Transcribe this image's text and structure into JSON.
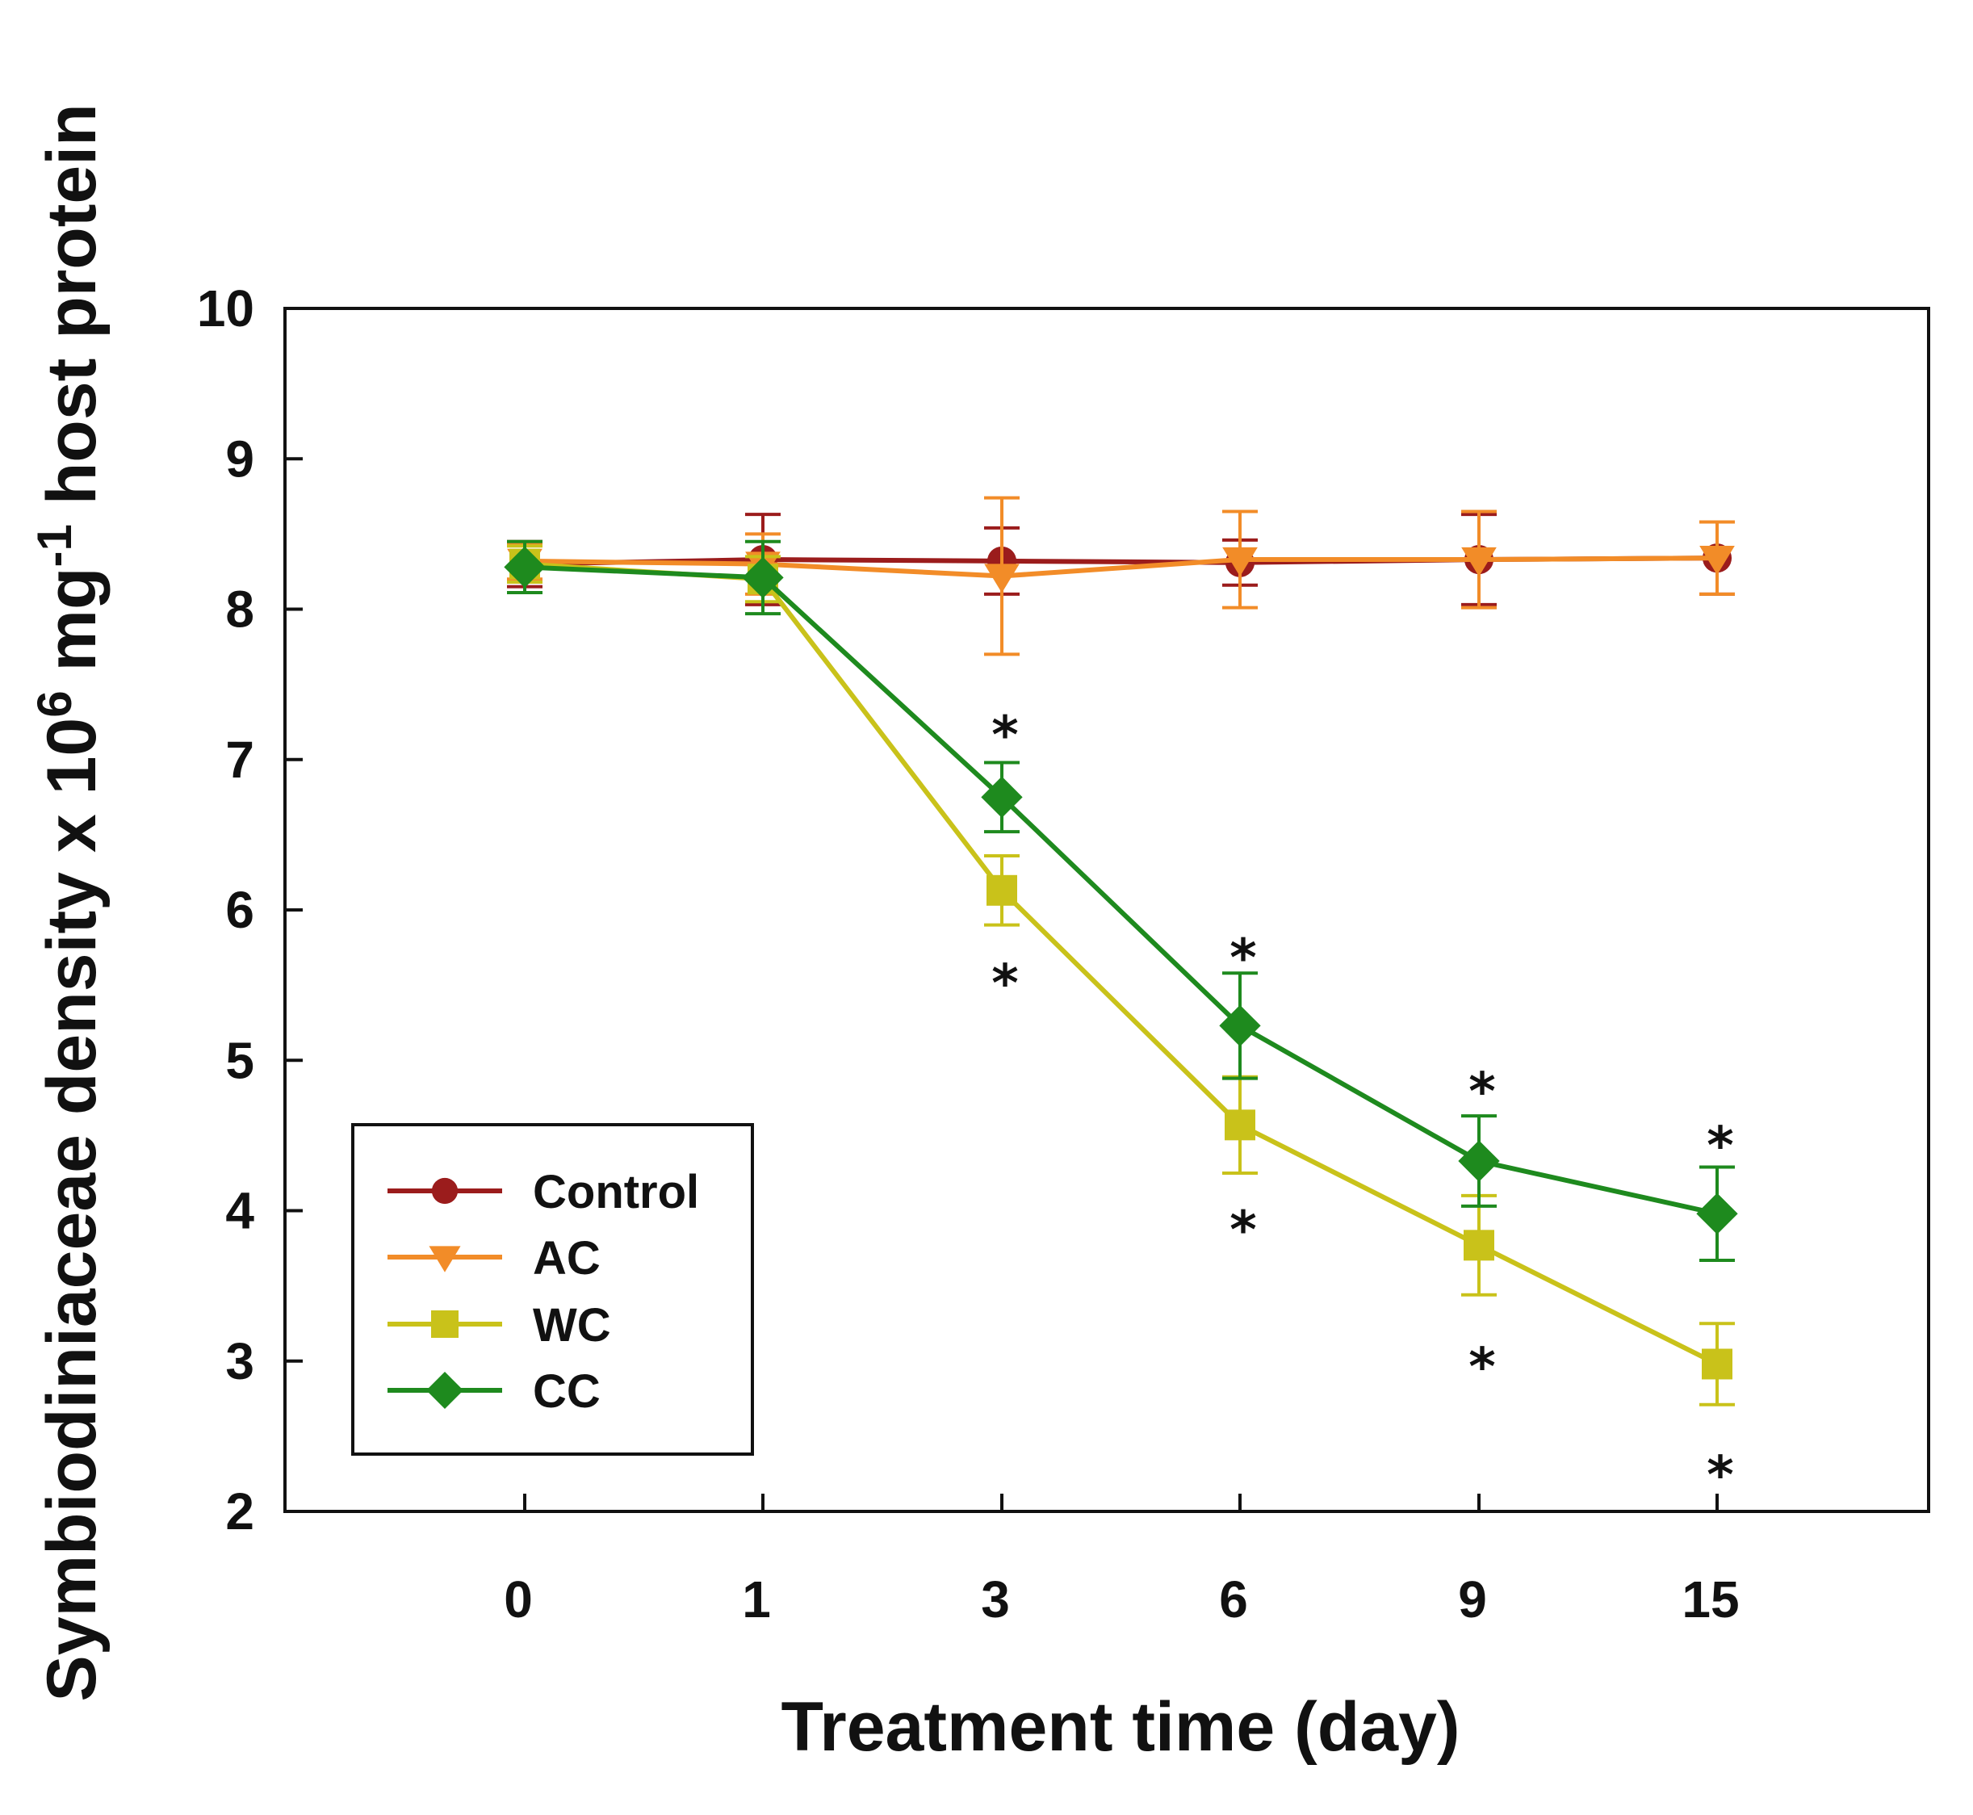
{
  "chart_data": {
    "type": "line",
    "title": "",
    "xlabel": "Treatment time (day)",
    "ylabel": {
      "prefix": "Symbiodiniaceae density x 10",
      "sup1": "6",
      "mid": " mg",
      "sup2": "-1",
      "suffix": " host protein"
    },
    "categories": [
      "0",
      "1",
      "3",
      "6",
      "9",
      "15"
    ],
    "ylim": [
      2,
      10
    ],
    "yticks": [
      "2",
      "3",
      "4",
      "5",
      "6",
      "7",
      "8",
      "9",
      "10"
    ],
    "legend_position": "lower-left",
    "series": [
      {
        "name": "Control",
        "color": "#9b1c1c",
        "marker": "circle",
        "values": [
          8.3,
          8.33,
          8.32,
          8.31,
          8.33,
          8.34
        ],
        "errors": [
          0.15,
          0.3,
          0.22,
          0.15,
          0.3,
          0.24
        ]
      },
      {
        "name": "AC",
        "color": "#f28c28",
        "marker": "triangle-down",
        "values": [
          8.32,
          8.3,
          8.22,
          8.33,
          8.33,
          8.34
        ],
        "errors": [
          0.12,
          0.2,
          0.52,
          0.32,
          0.32,
          0.24
        ]
      },
      {
        "name": "WC",
        "color": "#c9c21a",
        "marker": "square",
        "values": [
          8.3,
          8.2,
          6.13,
          4.57,
          3.77,
          2.98
        ],
        "errors": [
          0.12,
          0.15,
          0.23,
          0.32,
          0.33,
          0.27
        ]
      },
      {
        "name": "CC",
        "color": "#1e8a1e",
        "marker": "diamond",
        "values": [
          8.28,
          8.21,
          6.75,
          5.23,
          4.33,
          3.98
        ],
        "errors": [
          0.17,
          0.24,
          0.23,
          0.35,
          0.3,
          0.31
        ]
      }
    ],
    "annotations": [
      {
        "text": "*",
        "category": "3",
        "y": 7.28
      },
      {
        "text": "*",
        "category": "3",
        "y": 5.63
      },
      {
        "text": "*",
        "category": "6",
        "y": 5.8
      },
      {
        "text": "*",
        "category": "6",
        "y": 3.99
      },
      {
        "text": "*",
        "category": "9",
        "y": 4.91
      },
      {
        "text": "*",
        "category": "9",
        "y": 3.08
      },
      {
        "text": "*",
        "category": "15",
        "y": 4.55
      },
      {
        "text": "*",
        "category": "15",
        "y": 2.36
      }
    ]
  }
}
